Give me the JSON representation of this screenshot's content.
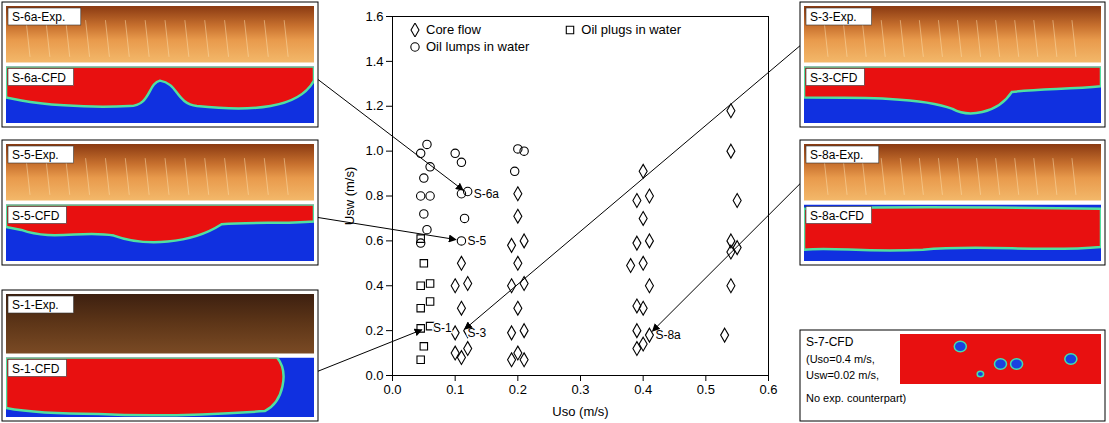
{
  "chart_data": {
    "type": "scatter",
    "xlabel": "Uso (m/s)",
    "ylabel": "Usw (m/s)",
    "xlim": [
      0,
      0.6
    ],
    "xticks": [
      {
        "value": 0,
        "label": "0.0"
      },
      0.1,
      0.2,
      0.3,
      0.4,
      0.5,
      0.6
    ],
    "ylim": [
      0,
      1.6
    ],
    "yticks": [
      {
        "value": 0,
        "label": "0.0"
      },
      0.2,
      0.4,
      0.6,
      0.8,
      {
        "value": 1,
        "label": "1.0"
      },
      1.2,
      1.4,
      1.6
    ],
    "grid": false,
    "legend": "top",
    "series": [
      {
        "name": "Core flow",
        "marker": "diamond",
        "color": "#000000",
        "x": [
          0.1,
          0.11,
          0.12,
          0.1,
          0.12,
          0.11,
          0.1,
          0.12,
          0.11,
          0.19,
          0.21,
          0.2,
          0.19,
          0.21,
          0.2,
          0.19,
          0.21,
          0.2,
          0.19,
          0.21,
          0.2,
          0.2,
          0.39,
          0.4,
          0.41,
          0.39,
          0.4,
          0.39,
          0.41,
          0.38,
          0.4,
          0.39,
          0.41,
          0.4,
          0.39,
          0.41,
          0.4,
          0.53,
          0.54,
          0.54,
          0.55,
          0.54,
          0.55,
          0.54,
          0.54
        ],
        "y": [
          0.1,
          0.08,
          0.12,
          0.19,
          0.2,
          0.3,
          0.4,
          0.41,
          0.5,
          0.07,
          0.07,
          0.1,
          0.19,
          0.2,
          0.3,
          0.4,
          0.41,
          0.5,
          0.58,
          0.6,
          0.71,
          0.81,
          0.12,
          0.14,
          0.18,
          0.2,
          0.3,
          0.31,
          0.4,
          0.49,
          0.5,
          0.59,
          0.6,
          0.7,
          0.78,
          0.8,
          0.91,
          0.18,
          0.4,
          0.55,
          0.57,
          0.6,
          0.78,
          1.0,
          1.18
        ]
      },
      {
        "name": "Oil plugs in water",
        "marker": "square",
        "color": "#000000",
        "x": [
          0.045,
          0.05,
          0.045,
          0.06,
          0.045,
          0.06,
          0.045,
          0.06,
          0.05,
          0.045
        ],
        "y": [
          0.61,
          0.5,
          0.4,
          0.41,
          0.3,
          0.33,
          0.21,
          0.22,
          0.13,
          0.07
        ]
      },
      {
        "name": "Oil lumps in water",
        "marker": "circle",
        "color": "#000000",
        "x": [
          0.045,
          0.055,
          0.06,
          0.05,
          0.045,
          0.06,
          0.05,
          0.055,
          0.045,
          0.1,
          0.11,
          0.11,
          0.12,
          0.115,
          0.11,
          0.2,
          0.21,
          0.195
        ],
        "y": [
          0.99,
          1.03,
          0.93,
          0.88,
          0.8,
          0.8,
          0.72,
          0.65,
          0.59,
          0.99,
          0.95,
          0.81,
          0.82,
          0.7,
          0.6,
          1.01,
          1.0,
          0.91
        ]
      }
    ],
    "annotations": [
      {
        "text": "S-6a",
        "x": 0.12,
        "y": 0.81
      },
      {
        "text": "S-5",
        "x": 0.11,
        "y": 0.6
      },
      {
        "text": "S-1",
        "x": 0.055,
        "y": 0.21
      },
      {
        "text": "S-3",
        "x": 0.11,
        "y": 0.19
      },
      {
        "text": "S-8a",
        "x": 0.41,
        "y": 0.18
      }
    ]
  },
  "panels": [
    {
      "side": "left",
      "exp": "S-6a-Exp.",
      "cfd": "S-6a-CFD"
    },
    {
      "side": "left",
      "exp": "S-5-Exp.",
      "cfd": "S-5-CFD"
    },
    {
      "side": "left",
      "exp": "S-1-Exp.",
      "cfd": "S-1-CFD"
    },
    {
      "side": "right",
      "exp": "S-3-Exp.",
      "cfd": "S-3-CFD"
    },
    {
      "side": "right",
      "exp": "S-8a-Exp.",
      "cfd": "S-8a-CFD"
    },
    {
      "side": "right",
      "cfd": "S-7-CFD",
      "note": [
        "(Uso=0.4 m/s,",
        "Usw=0.02 m/s,",
        "No exp. counterpart)"
      ]
    }
  ]
}
